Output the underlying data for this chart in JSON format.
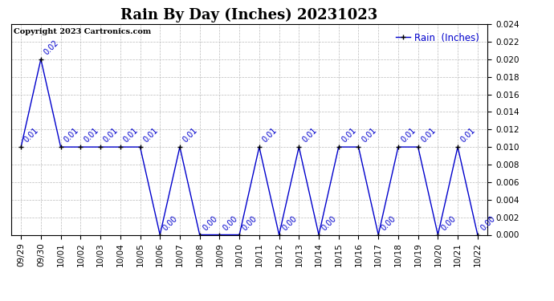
{
  "title": "Rain By Day (Inches) 20231023",
  "copyright_text": "Copyright 2023 Cartronics.com",
  "legend_label": "Rain  (Inches)",
  "dates": [
    "09/29",
    "09/30",
    "10/01",
    "10/02",
    "10/03",
    "10/04",
    "10/05",
    "10/06",
    "10/07",
    "10/08",
    "10/09",
    "10/10",
    "10/11",
    "10/12",
    "10/13",
    "10/14",
    "10/15",
    "10/16",
    "10/17",
    "10/18",
    "10/19",
    "10/20",
    "10/21",
    "10/22"
  ],
  "values": [
    0.01,
    0.02,
    0.01,
    0.01,
    0.01,
    0.01,
    0.01,
    0.0,
    0.01,
    0.0,
    0.0,
    0.0,
    0.01,
    0.0,
    0.01,
    0.0,
    0.01,
    0.01,
    0.0,
    0.01,
    0.01,
    0.0,
    0.01,
    0.0
  ],
  "line_color": "#0000cc",
  "marker_color": "#000000",
  "background_color": "#ffffff",
  "grid_color": "#bbbbbb",
  "ylim": [
    0.0,
    0.024
  ],
  "yticks": [
    0.0,
    0.002,
    0.004,
    0.006,
    0.008,
    0.01,
    0.012,
    0.014,
    0.016,
    0.018,
    0.02,
    0.022,
    0.024
  ],
  "title_fontsize": 13,
  "label_fontsize": 7.5,
  "annotation_fontsize": 7,
  "copyright_fontsize": 7,
  "legend_fontsize": 8.5
}
